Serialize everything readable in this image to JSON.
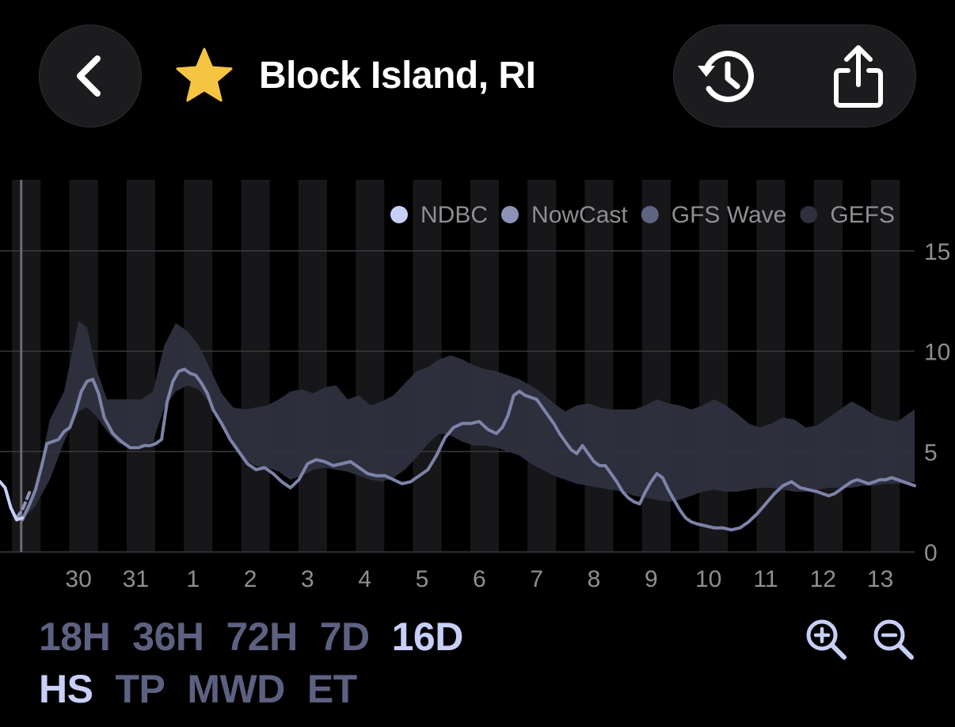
{
  "header": {
    "title": "Block Island, RI",
    "back_icon": "chevron-left-icon",
    "favorite_icon": "star-icon",
    "history_icon": "history-icon",
    "share_icon": "share-icon",
    "star_color": "#f5c542"
  },
  "legend": [
    {
      "name": "NDBC",
      "color": "#c8cff7"
    },
    {
      "name": "NowCast",
      "color": "#8d92b8"
    },
    {
      "name": "GFS Wave",
      "color": "#5e6482"
    },
    {
      "name": "GEFS",
      "color": "#2e303e"
    }
  ],
  "range_options": [
    {
      "label": "18H",
      "active": false
    },
    {
      "label": "36H",
      "active": false
    },
    {
      "label": "72H",
      "active": false
    },
    {
      "label": "7D",
      "active": false
    },
    {
      "label": "16D",
      "active": true
    }
  ],
  "param_options": [
    {
      "label": "HS",
      "active": true
    },
    {
      "label": "TP",
      "active": false
    },
    {
      "label": "MWD",
      "active": false
    },
    {
      "label": "ET",
      "active": false
    }
  ],
  "zoom": {
    "in_icon": "zoom-in-icon",
    "out_icon": "zoom-out-icon"
  },
  "chart_data": {
    "type": "area",
    "y_ticks": [
      "15",
      "10",
      "5",
      "0"
    ],
    "ylim": [
      0,
      15
    ],
    "x_labels": [
      "30",
      "31",
      "1",
      "2",
      "3",
      "4",
      "5",
      "6",
      "7",
      "8",
      "9",
      "10",
      "11",
      "12",
      "13"
    ],
    "x_label_day": [
      29.7,
      30.7,
      31.7,
      32.7,
      33.7,
      34.7,
      35.7,
      36.7,
      37.7,
      38.7,
      39.7,
      40.7,
      41.7,
      42.7,
      43.7
    ],
    "xlim": [
      28.33,
      44.3
    ],
    "now_marker_day": 28.7,
    "series": [
      {
        "name": "NDBC",
        "x": [
          28.33,
          28.42,
          28.52,
          28.62,
          28.72
        ],
        "values": [
          3.5,
          3.2,
          2.2,
          1.6,
          1.7
        ]
      },
      {
        "name": "NowCast",
        "x": [
          28.62,
          28.72,
          28.85
        ],
        "values": [
          1.7,
          2.1,
          3.0
        ]
      },
      {
        "name": "GFS Wave",
        "x": [
          28.72,
          28.85,
          28.95,
          29.05,
          29.15,
          29.25,
          29.35,
          29.45,
          29.55,
          29.65,
          29.75,
          29.85,
          29.95,
          30.05,
          30.15,
          30.3,
          30.45,
          30.6,
          30.75,
          30.85,
          30.95,
          31.05,
          31.15,
          31.25,
          31.35,
          31.45,
          31.55,
          31.65,
          31.75,
          31.85,
          31.95,
          32.05,
          32.2,
          32.35,
          32.5,
          32.65,
          32.8,
          32.95,
          33.1,
          33.25,
          33.4,
          33.55,
          33.7,
          33.85,
          34.0,
          34.15,
          34.3,
          34.45,
          34.6,
          34.75,
          34.9,
          35.05,
          35.2,
          35.35,
          35.5,
          35.65,
          35.8,
          35.95,
          36.1,
          36.25,
          36.4,
          36.55,
          36.7,
          36.85,
          37.0,
          37.1,
          37.2,
          37.3,
          37.4,
          37.5,
          37.6,
          37.7,
          37.8,
          37.9,
          38.0,
          38.1,
          38.2,
          38.3,
          38.4,
          38.5,
          38.6,
          38.7,
          38.8,
          38.9,
          39.0,
          39.1,
          39.2,
          39.3,
          39.4,
          39.5,
          39.6,
          39.7,
          39.8,
          39.9,
          40.0,
          40.1,
          40.2,
          40.3,
          40.4,
          40.5,
          40.65,
          40.8,
          40.95,
          41.1,
          41.25,
          41.4,
          41.55,
          41.7,
          41.85,
          42.0,
          42.15,
          42.3,
          42.45,
          42.6,
          42.7,
          42.8,
          42.9,
          43.0,
          43.1,
          43.2,
          43.3,
          43.4,
          43.5,
          43.6,
          43.7,
          43.8,
          43.9,
          44.0,
          44.1,
          44.2,
          44.3
        ],
        "values": [
          1.6,
          2.4,
          3.1,
          4.2,
          5.4,
          5.5,
          5.6,
          6.0,
          6.2,
          7.0,
          8.0,
          8.5,
          8.6,
          7.9,
          6.7,
          5.9,
          5.5,
          5.2,
          5.2,
          5.3,
          5.3,
          5.4,
          5.6,
          7.5,
          8.5,
          9.0,
          9.1,
          8.9,
          8.8,
          8.4,
          7.9,
          7.1,
          6.4,
          5.6,
          5.0,
          4.4,
          4.1,
          4.2,
          3.9,
          3.5,
          3.2,
          3.6,
          4.4,
          4.6,
          4.5,
          4.3,
          4.4,
          4.5,
          4.2,
          3.9,
          3.8,
          3.8,
          3.6,
          3.4,
          3.5,
          3.8,
          4.1,
          4.8,
          5.7,
          6.2,
          6.4,
          6.4,
          6.5,
          6.1,
          5.9,
          6.2,
          6.8,
          7.8,
          8.0,
          7.8,
          7.7,
          7.6,
          7.2,
          6.8,
          6.4,
          5.9,
          5.5,
          5.1,
          4.9,
          5.3,
          4.9,
          4.5,
          4.3,
          4.3,
          3.9,
          3.5,
          3.0,
          2.7,
          2.5,
          2.4,
          3.0,
          3.5,
          3.9,
          3.7,
          3.1,
          2.6,
          2.1,
          1.7,
          1.5,
          1.4,
          1.3,
          1.2,
          1.2,
          1.1,
          1.2,
          1.5,
          1.9,
          2.4,
          2.9,
          3.3,
          3.5,
          3.2,
          3.1,
          3.0,
          2.9,
          2.8,
          2.9,
          3.1,
          3.3,
          3.5,
          3.6,
          3.5,
          3.4,
          3.5,
          3.6,
          3.6,
          3.7,
          3.6,
          3.5,
          3.4,
          3.3
        ]
      },
      {
        "name": "GEFS",
        "x": [
          28.72,
          28.95,
          29.2,
          29.45,
          29.7,
          29.85,
          30.0,
          30.2,
          30.4,
          30.6,
          30.8,
          31.0,
          31.2,
          31.4,
          31.6,
          31.8,
          32.0,
          32.2,
          32.4,
          32.6,
          32.8,
          33.0,
          33.2,
          33.4,
          33.6,
          33.8,
          34.0,
          34.2,
          34.4,
          34.6,
          34.8,
          35.0,
          35.2,
          35.4,
          35.6,
          35.8,
          36.0,
          36.2,
          36.4,
          36.6,
          36.8,
          37.0,
          37.2,
          37.4,
          37.6,
          37.8,
          38.0,
          38.2,
          38.4,
          38.6,
          38.8,
          39.0,
          39.2,
          39.4,
          39.6,
          39.8,
          40.0,
          40.2,
          40.4,
          40.6,
          40.8,
          41.0,
          41.2,
          41.4,
          41.6,
          41.8,
          42.0,
          42.2,
          42.4,
          42.6,
          42.8,
          43.0,
          43.2,
          43.4,
          43.6,
          43.8,
          44.0,
          44.3
        ],
        "min": [
          1.6,
          2.3,
          3.6,
          5.5,
          7.0,
          7.2,
          6.8,
          6.0,
          5.4,
          5.3,
          5.3,
          5.5,
          7.2,
          8.0,
          8.3,
          8.1,
          7.4,
          6.2,
          5.3,
          4.6,
          4.3,
          4.2,
          4.0,
          3.6,
          3.8,
          4.1,
          4.2,
          4.1,
          4.0,
          3.8,
          3.6,
          3.5,
          3.7,
          4.1,
          4.7,
          5.4,
          5.9,
          5.8,
          5.5,
          5.3,
          5.3,
          5.2,
          5.0,
          4.8,
          4.4,
          4.1,
          3.8,
          3.6,
          3.4,
          3.3,
          3.2,
          3.1,
          3.0,
          2.8,
          2.7,
          2.6,
          2.5,
          2.6,
          2.8,
          3.0,
          3.1,
          3.0,
          3.0,
          3.1,
          3.2,
          3.2,
          3.1,
          3.0,
          3.0,
          3.1,
          3.2,
          3.2,
          3.2,
          3.3,
          3.3,
          3.4,
          3.4,
          3.5
        ],
        "max": [
          1.6,
          3.2,
          6.6,
          8.0,
          11.5,
          11.2,
          9.2,
          7.6,
          7.6,
          7.6,
          7.6,
          8.0,
          10.3,
          11.4,
          11.0,
          10.3,
          9.1,
          7.9,
          7.2,
          7.1,
          7.2,
          7.3,
          7.6,
          8.0,
          8.1,
          7.9,
          8.2,
          8.3,
          7.6,
          7.8,
          7.3,
          7.5,
          7.8,
          8.4,
          9.0,
          9.2,
          9.6,
          9.8,
          9.6,
          9.3,
          9.1,
          9.0,
          8.8,
          8.6,
          8.3,
          7.9,
          7.4,
          7.0,
          7.3,
          7.4,
          7.2,
          7.1,
          7.1,
          7.1,
          7.3,
          7.6,
          7.4,
          7.3,
          7.1,
          7.3,
          7.6,
          7.3,
          6.9,
          6.4,
          6.2,
          6.4,
          6.7,
          6.6,
          6.2,
          6.3,
          6.7,
          7.1,
          7.5,
          7.2,
          6.8,
          6.6,
          6.5,
          7.1
        ]
      }
    ]
  }
}
